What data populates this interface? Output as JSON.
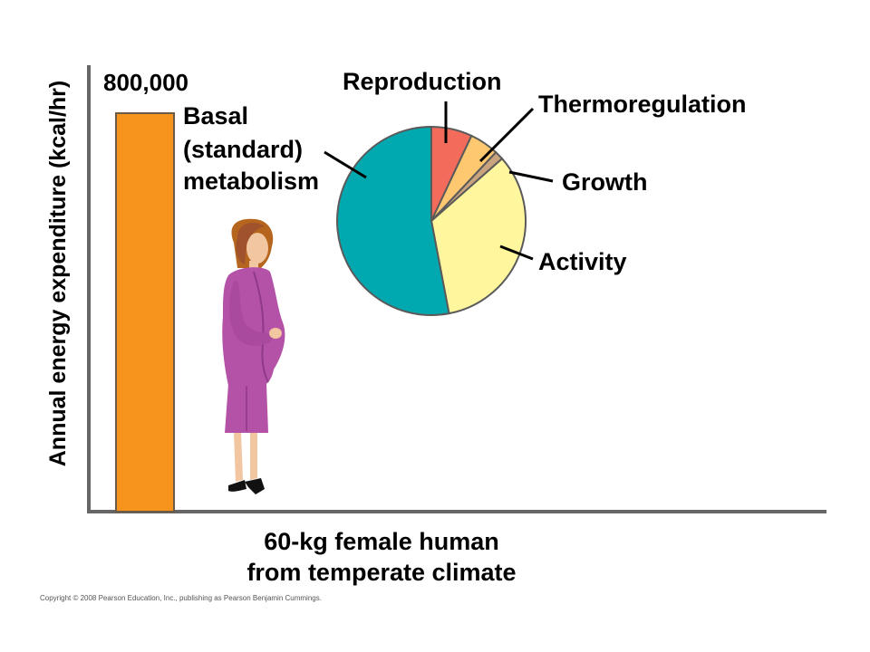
{
  "chart_data": [
    {
      "type": "bar",
      "ylabel": "Annual energy expenditure (kcal/hr)",
      "categories": [
        "60-kg female human from temperate climate"
      ],
      "xlabel_lines": [
        "60-kg female human",
        "from temperate climate"
      ],
      "values": [
        800000
      ],
      "value_label": "800,000",
      "ylim": [
        0,
        800000
      ],
      "bar_color": "#F7941D",
      "grid": false
    },
    {
      "type": "pie",
      "slices": [
        {
          "label": "Reproduction",
          "value": 7,
          "color": "#F26B5B"
        },
        {
          "label": "Thermoregulation",
          "value": 5,
          "color": "#FDC86F"
        },
        {
          "label": "Growth",
          "value": 1.5,
          "color": "#C9A27E"
        },
        {
          "label": "Activity",
          "value": 33.5,
          "color": "#FFF69E"
        },
        {
          "label": "Basal (standard) metabolism",
          "label_lines": [
            "Basal",
            "(standard)",
            "metabolism"
          ],
          "value": 53,
          "color": "#00A8B0"
        }
      ],
      "legend": "none"
    }
  ],
  "copyright": "Copyright © 2008 Pearson Education, Inc., publishing as Pearson Benjamin Cummings."
}
